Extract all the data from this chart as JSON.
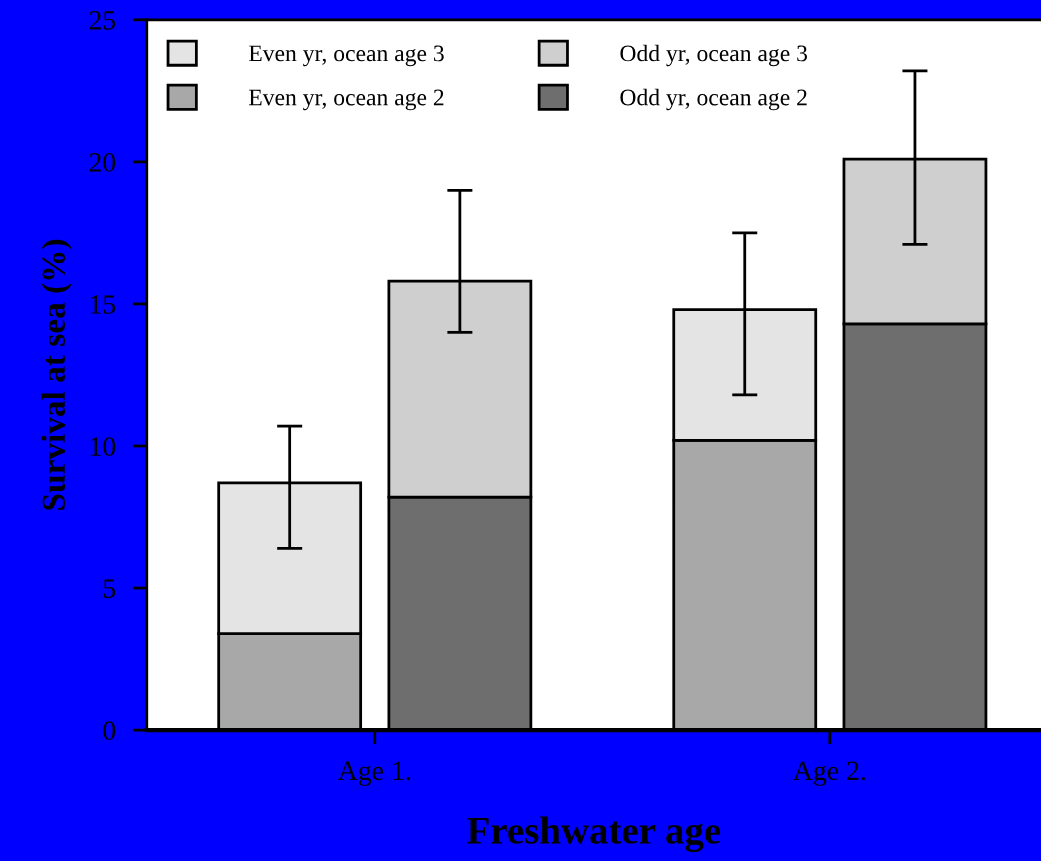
{
  "chart_data": {
    "type": "bar",
    "stacked": true,
    "xlabel": "Freshwater age",
    "ylabel": "Survival at sea (%)",
    "categories": [
      null,
      null,
      null,
      null
    ],
    "annotations": [
      "Age 1.",
      "Age 2."
    ],
    "series": [
      {
        "name": "Even yr, ocean age 2",
        "color": "#a8a8a8",
        "values": [
          3.4,
          null,
          10.2,
          null
        ]
      },
      {
        "name": "Even yr, ocean age 3",
        "color": "#e4e4e4",
        "values": [
          5.3,
          null,
          4.6,
          null
        ],
        "errors": [
          [
            6.4,
            10.7
          ],
          null,
          [
            11.8,
            17.5
          ],
          null
        ]
      },
      {
        "name": "Odd yr, ocean age 2",
        "color": "#6e6e6e",
        "values": [
          null,
          8.2,
          null,
          14.3
        ]
      },
      {
        "name": "Odd yr, ocean age 3",
        "color": "#cfcfcf",
        "values": [
          null,
          7.6,
          null,
          5.8
        ],
        "errors": [
          null,
          [
            14.0,
            19.0
          ],
          null,
          [
            17.1,
            23.2
          ]
        ]
      }
    ],
    "ylim": [
      0,
      25
    ],
    "yticks": [
      0,
      5,
      10,
      15,
      20,
      25
    ],
    "grid": false,
    "legend": "top left"
  }
}
